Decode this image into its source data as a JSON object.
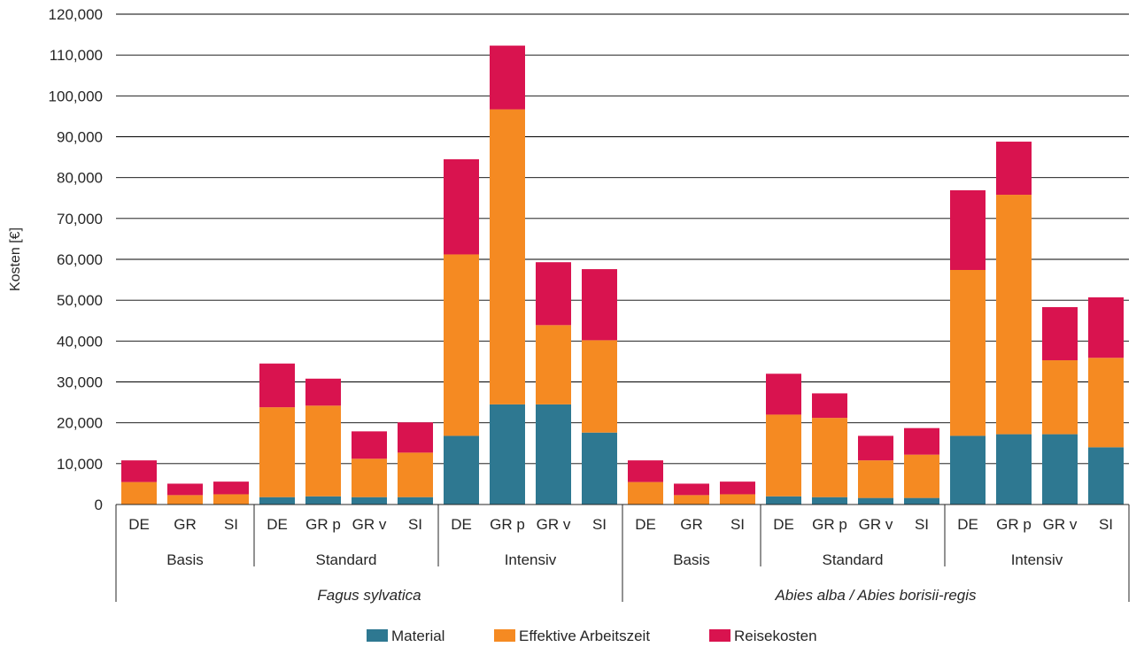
{
  "chart_data": {
    "type": "bar",
    "stacked": true,
    "title": "",
    "ylabel": "Kosten [€]",
    "ylim": [
      0,
      120000
    ],
    "yticks": [
      0,
      10000,
      20000,
      30000,
      40000,
      50000,
      60000,
      70000,
      80000,
      90000,
      100000,
      110000,
      120000
    ],
    "ytick_labels": [
      "0",
      "10,000",
      "20,000",
      "30,000",
      "40,000",
      "50,000",
      "60,000",
      "70,000",
      "80,000",
      "90,000",
      "100,000",
      "110,000",
      "120,000"
    ],
    "grid": "horizontal",
    "legend_position": "bottom",
    "categories": [
      "DE",
      "GR",
      "SI",
      "DE",
      "GR p",
      "GR v",
      "SI",
      "DE",
      "GR p",
      "GR v",
      "SI",
      "DE",
      "GR",
      "SI",
      "DE",
      "GR p",
      "GR v",
      "SI",
      "DE",
      "GR p",
      "GR v",
      "SI"
    ],
    "level2_groups": [
      {
        "label": "Basis",
        "count": 3
      },
      {
        "label": "Standard",
        "count": 4
      },
      {
        "label": "Intensiv",
        "count": 4
      },
      {
        "label": "Basis",
        "count": 3
      },
      {
        "label": "Standard",
        "count": 4
      },
      {
        "label": "Intensiv",
        "count": 4
      }
    ],
    "level3_groups": [
      {
        "label": "Fagus sylvatica",
        "count": 11
      },
      {
        "label": "Abies alba / Abies borisii-regis",
        "count": 11
      }
    ],
    "series": [
      {
        "name": "Material",
        "color": "#2E7891",
        "values": [
          0,
          0,
          0,
          1800,
          2000,
          1800,
          1800,
          16800,
          24500,
          24500,
          17600,
          0,
          0,
          0,
          2000,
          1800,
          1600,
          1600,
          16800,
          17200,
          17200,
          14000
        ]
      },
      {
        "name": "Effektive Arbeitszeit",
        "color": "#F58A22",
        "values": [
          5500,
          2300,
          2500,
          22000,
          22200,
          9400,
          10900,
          44400,
          72200,
          19400,
          22600,
          5500,
          2300,
          2500,
          20000,
          19400,
          9200,
          10600,
          40600,
          58600,
          18100,
          21900
        ]
      },
      {
        "name": "Reisekosten",
        "color": "#D9134F",
        "values": [
          5300,
          2800,
          3100,
          10700,
          6600,
          6700,
          7400,
          23300,
          15600,
          15400,
          17400,
          5300,
          2800,
          3100,
          10000,
          6000,
          6000,
          6500,
          19500,
          13000,
          13000,
          14800
        ]
      }
    ]
  }
}
